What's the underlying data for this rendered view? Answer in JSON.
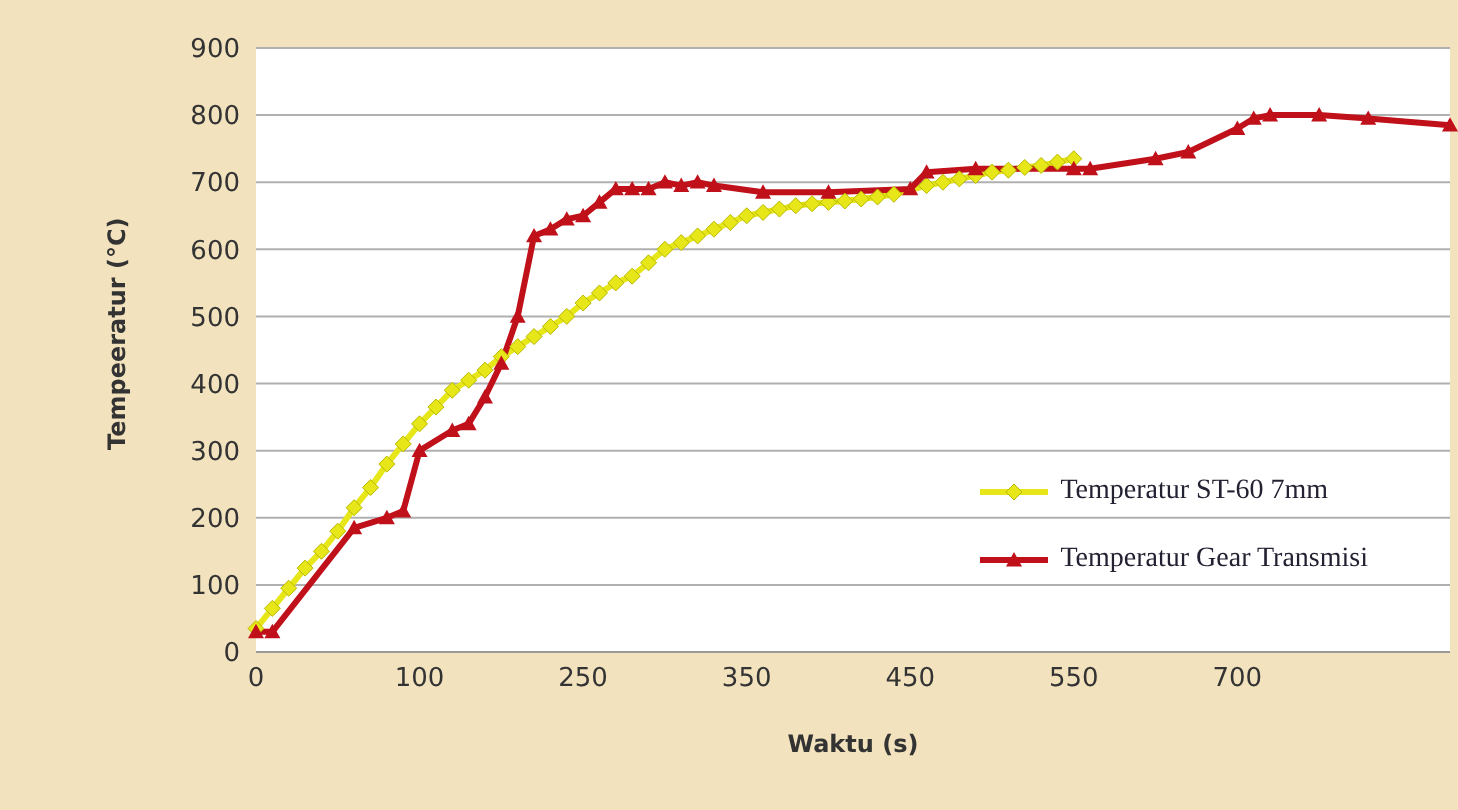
{
  "chart_data": {
    "type": "line",
    "xlabel": "Waktu (s)",
    "ylabel": "Tempeeratur (°C)",
    "categories": [
      "0",
      null,
      null,
      null,
      null,
      null,
      null,
      null,
      null,
      null,
      "100",
      null,
      null,
      null,
      null,
      null,
      null,
      null,
      null,
      null,
      "250",
      null,
      null,
      null,
      null,
      null,
      null,
      null,
      null,
      null,
      "350",
      null,
      null,
      null,
      null,
      null,
      null,
      null,
      null,
      null,
      "450",
      null,
      null,
      null,
      null,
      null,
      null,
      null,
      null,
      null,
      "550",
      null,
      null,
      null,
      null,
      null,
      null,
      null,
      null,
      null,
      "700",
      null,
      null,
      null,
      null,
      null,
      null,
      null,
      null,
      null,
      null,
      null,
      null,
      null
    ],
    "series": [
      {
        "name": "Temperatur ST-60 7mm",
        "color": "#e6e619",
        "marker": "diamond",
        "values": [
          35,
          65,
          95,
          125,
          150,
          180,
          215,
          245,
          280,
          310,
          340,
          365,
          390,
          405,
          420,
          440,
          455,
          470,
          485,
          500,
          520,
          535,
          550,
          560,
          580,
          600,
          610,
          620,
          630,
          640,
          650,
          655,
          660,
          665,
          668,
          670,
          672,
          675,
          678,
          682,
          null,
          695,
          700,
          705,
          710,
          715,
          718,
          722,
          725,
          730,
          735,
          null,
          null,
          null,
          null,
          null,
          null,
          null,
          null,
          null,
          null,
          null,
          null,
          null,
          null,
          null,
          null,
          null,
          null,
          null,
          null,
          null,
          null,
          null
        ]
      },
      {
        "name": "Temperatur Gear Transmisi",
        "color": "#c0101a",
        "marker": "triangle",
        "values": [
          30,
          30,
          null,
          null,
          null,
          null,
          185,
          null,
          200,
          210,
          300,
          null,
          330,
          340,
          380,
          430,
          500,
          620,
          630,
          645,
          650,
          670,
          690,
          690,
          690,
          700,
          695,
          700,
          695,
          null,
          null,
          685,
          null,
          null,
          null,
          685,
          null,
          null,
          null,
          null,
          690,
          715,
          null,
          null,
          720,
          null,
          null,
          null,
          null,
          null,
          720,
          720,
          null,
          null,
          null,
          735,
          null,
          745,
          null,
          null,
          780,
          795,
          800,
          null,
          null,
          800,
          null,
          null,
          795,
          null,
          null,
          null,
          null,
          785
        ]
      }
    ],
    "ylim": [
      0,
      900
    ],
    "yticks": [
      0,
      100,
      200,
      300,
      400,
      500,
      600,
      700,
      800,
      900
    ],
    "grid": "y",
    "legend": "bottom right"
  }
}
